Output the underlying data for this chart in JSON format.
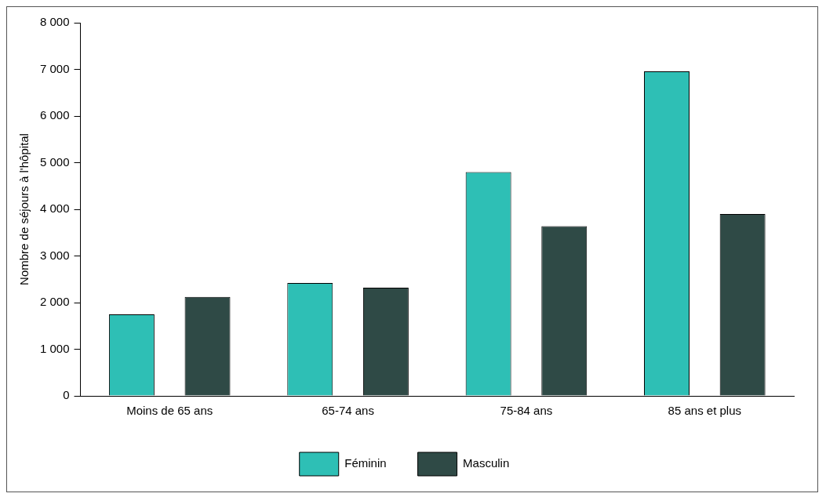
{
  "chart_data": {
    "type": "bar",
    "ylabel": "Nombre de séjours à l'hôpital",
    "categories": [
      "Moins de 65 ans",
      "65-74 ans",
      "75-84 ans",
      "85 ans et plus"
    ],
    "series": [
      {
        "name": "Féminin",
        "color": "#2ebfb5",
        "values": [
          1750,
          2420,
          4800,
          6960
        ]
      },
      {
        "name": "Masculin",
        "color": "#2f4a46",
        "values": [
          2120,
          2320,
          3640,
          3900
        ]
      }
    ],
    "ylim": [
      0,
      8000
    ],
    "yticks": [
      {
        "value": 0,
        "label": "0"
      },
      {
        "value": 1000,
        "label": "1 000"
      },
      {
        "value": 2000,
        "label": "2 000"
      },
      {
        "value": 3000,
        "label": "3 000"
      },
      {
        "value": 4000,
        "label": "4 000"
      },
      {
        "value": 5000,
        "label": "5 000"
      },
      {
        "value": 6000,
        "label": "6 000"
      },
      {
        "value": 7000,
        "label": "7 000"
      },
      {
        "value": 8000,
        "label": "8 000"
      }
    ],
    "grid": false,
    "legend": "bottom"
  }
}
